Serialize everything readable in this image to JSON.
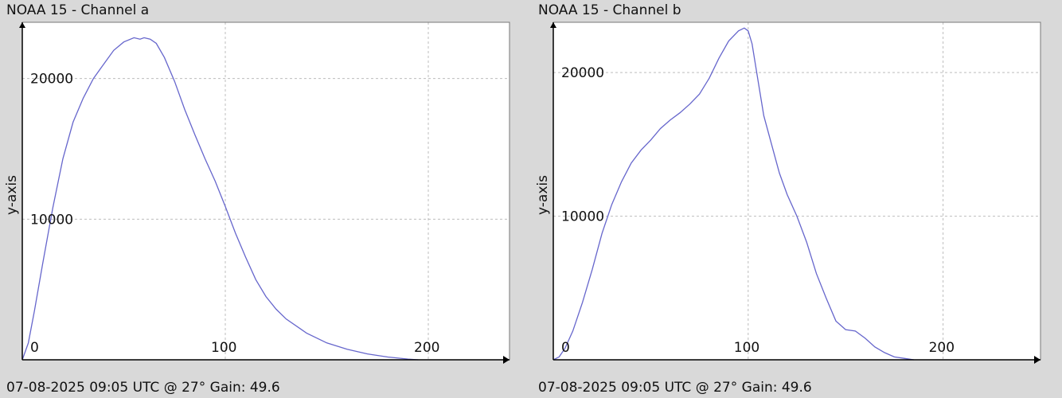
{
  "chart_data": [
    {
      "type": "line",
      "title": "NOAA 15 - Channel a",
      "footer": "07-08-2025 09:05 UTC @ 27° Gain: 49.6",
      "ylabel": "y-axis",
      "xlabel": "",
      "xlim": [
        0,
        240
      ],
      "ylim": [
        0,
        24000
      ],
      "x_ticks": [
        0,
        100,
        200
      ],
      "y_ticks": [
        10000,
        20000
      ],
      "grid": true,
      "line_color": "#6666cc",
      "series": [
        {
          "x": [
            0,
            3,
            6,
            10,
            15,
            20,
            25,
            30,
            35,
            40,
            45,
            50,
            55,
            58,
            60,
            63,
            66,
            70,
            75,
            80,
            85,
            90,
            95,
            100,
            105,
            110,
            115,
            120,
            125,
            130,
            140,
            150,
            160,
            170,
            180,
            190,
            195
          ],
          "y": [
            0,
            1200,
            3500,
            6800,
            10800,
            14300,
            16900,
            18600,
            20000,
            21000,
            22000,
            22600,
            22900,
            22800,
            22900,
            22800,
            22500,
            21500,
            19800,
            17800,
            16000,
            14300,
            12700,
            10900,
            9000,
            7300,
            5700,
            4500,
            3600,
            2900,
            1900,
            1200,
            750,
            420,
            200,
            50,
            0
          ]
        }
      ]
    },
    {
      "type": "line",
      "title": "NOAA 15 - Channel b",
      "footer": "07-08-2025 09:05 UTC @ 27° Gain: 49.6",
      "ylabel": "y-axis",
      "xlabel": "",
      "xlim": [
        0,
        250
      ],
      "ylim": [
        0,
        23500
      ],
      "x_ticks": [
        0,
        100,
        200
      ],
      "y_ticks": [
        10000,
        20000
      ],
      "grid": true,
      "line_color": "#6666cc",
      "series": [
        {
          "x": [
            0,
            3,
            6,
            10,
            15,
            20,
            25,
            30,
            35,
            40,
            45,
            50,
            55,
            60,
            65,
            70,
            75,
            80,
            85,
            90,
            95,
            98,
            100,
            102,
            105,
            108,
            112,
            116,
            120,
            125,
            130,
            135,
            140,
            145,
            150,
            155,
            160,
            165,
            170,
            175,
            180,
            185
          ],
          "y": [
            0,
            200,
            800,
            2000,
            4000,
            6300,
            8800,
            10800,
            12400,
            13700,
            14600,
            15300,
            16100,
            16700,
            17200,
            17800,
            18500,
            19600,
            21000,
            22200,
            22900,
            23100,
            22900,
            22000,
            19500,
            17000,
            15000,
            13000,
            11500,
            10000,
            8200,
            6000,
            4300,
            2700,
            2100,
            2000,
            1500,
            900,
            500,
            200,
            100,
            0
          ]
        }
      ]
    }
  ]
}
